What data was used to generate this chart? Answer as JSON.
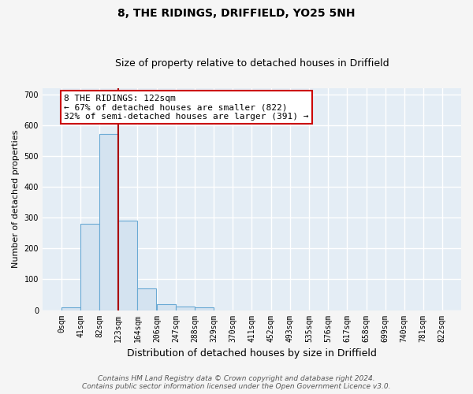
{
  "title": "8, THE RIDINGS, DRIFFIELD, YO25 5NH",
  "subtitle": "Size of property relative to detached houses in Driffield",
  "xlabel": "Distribution of detached houses by size in Driffield",
  "ylabel": "Number of detached properties",
  "bin_edges": [
    0,
    41,
    82,
    123,
    164,
    206,
    247,
    288,
    329,
    370,
    411,
    452,
    493,
    535,
    576,
    617,
    658,
    699,
    740,
    781,
    822
  ],
  "bar_heights": [
    10,
    280,
    570,
    290,
    70,
    20,
    12,
    8,
    0,
    0,
    0,
    0,
    0,
    0,
    0,
    0,
    0,
    0,
    0,
    0
  ],
  "bar_color": "#d4e3f0",
  "bar_edgecolor": "#6aaad4",
  "property_size": 122,
  "vline_color": "#aa0000",
  "annotation_text": "8 THE RIDINGS: 122sqm\n← 67% of detached houses are smaller (822)\n32% of semi-detached houses are larger (391) →",
  "annotation_box_facecolor": "#ffffff",
  "annotation_box_edgecolor": "#cc0000",
  "ylim": [
    0,
    720
  ],
  "yticks": [
    0,
    100,
    200,
    300,
    400,
    500,
    600,
    700
  ],
  "plot_bg_color": "#e4edf5",
  "fig_bg_color": "#f5f5f5",
  "grid_color": "#ffffff",
  "footer_line1": "Contains HM Land Registry data © Crown copyright and database right 2024.",
  "footer_line2": "Contains public sector information licensed under the Open Government Licence v3.0.",
  "title_fontsize": 10,
  "subtitle_fontsize": 9,
  "xlabel_fontsize": 9,
  "ylabel_fontsize": 8,
  "tick_fontsize": 7,
  "annotation_fontsize": 8,
  "footer_fontsize": 6.5
}
